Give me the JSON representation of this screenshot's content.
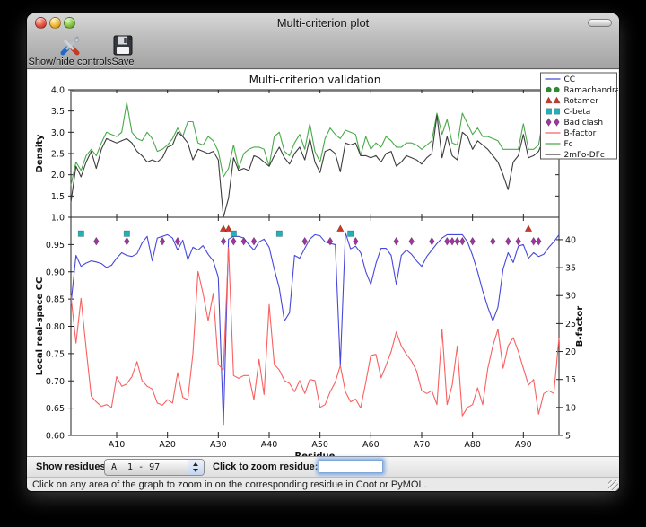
{
  "window": {
    "title": "Multi-criterion plot"
  },
  "toolbar": {
    "buttons": [
      {
        "label": "Show/hide controls",
        "icon": "tools-icon"
      },
      {
        "label": "Save",
        "icon": "save-icon"
      }
    ]
  },
  "controls": {
    "show_residues_label": "Show residues:",
    "chain_range_value": "A  1 - 97",
    "zoom_label": "Click to zoom residue:",
    "zoom_input_value": ""
  },
  "status_bar": {
    "text": "Click on any area of the graph to zoom in on the corresponding residue in Coot or PyMOL."
  },
  "chart_data": {
    "type": "line",
    "title": "Multi-criterion validation",
    "xlabel": "Residue",
    "x_range": [
      1,
      97
    ],
    "x_ticks": [
      {
        "residue": 10,
        "label": "A10"
      },
      {
        "residue": 20,
        "label": "A20"
      },
      {
        "residue": 30,
        "label": "A30"
      },
      {
        "residue": 40,
        "label": "A40"
      },
      {
        "residue": 50,
        "label": "A50"
      },
      {
        "residue": 60,
        "label": "A60"
      },
      {
        "residue": 70,
        "label": "A70"
      },
      {
        "residue": 80,
        "label": "A80"
      },
      {
        "residue": 90,
        "label": "A90"
      }
    ],
    "subplots": [
      {
        "ylabel": "Density",
        "ylim": [
          1.0,
          4.0
        ],
        "yticks": [
          1.0,
          1.5,
          2.0,
          2.5,
          3.0,
          3.5,
          4.0
        ],
        "series": [
          {
            "name": "Fc",
            "color": "#4aa94a",
            "values": [
              1.75,
              2.3,
              2.1,
              2.45,
              2.6,
              2.45,
              2.75,
              3.0,
              2.95,
              2.9,
              3.0,
              3.7,
              3.0,
              2.85,
              2.8,
              3.0,
              2.85,
              2.55,
              2.6,
              2.7,
              2.85,
              3.1,
              2.9,
              3.25,
              3.25,
              2.75,
              2.7,
              2.9,
              2.8,
              2.55,
              1.95,
              2.15,
              2.7,
              2.15,
              2.5,
              2.6,
              2.65,
              2.65,
              2.6,
              2.2,
              2.9,
              3.0,
              2.55,
              2.45,
              2.75,
              2.95,
              2.6,
              3.2,
              2.55,
              2.3,
              2.85,
              3.1,
              2.95,
              2.85,
              3.05,
              3.0,
              2.95,
              2.45,
              2.9,
              2.6,
              2.75,
              2.65,
              2.9,
              2.8,
              2.65,
              2.65,
              2.75,
              2.75,
              2.7,
              2.6,
              2.7,
              2.8,
              3.45,
              2.95,
              3.3,
              2.75,
              2.7,
              3.45,
              3.2,
              2.95,
              3.1,
              2.9,
              2.9,
              2.85,
              2.8,
              2.6,
              2.6,
              2.6,
              2.6,
              3.2,
              2.6,
              2.6,
              2.7,
              3.4,
              3.55,
              3.0,
              3.6
            ]
          },
          {
            "name": "2mFo-DFc",
            "color": "#3c3c3c",
            "values": [
              1.35,
              2.2,
              1.95,
              2.3,
              2.55,
              2.15,
              2.6,
              2.85,
              2.8,
              2.75,
              2.8,
              2.85,
              2.75,
              2.55,
              2.45,
              2.3,
              2.35,
              2.3,
              2.4,
              2.65,
              2.7,
              3.0,
              2.9,
              2.75,
              2.35,
              2.6,
              2.55,
              2.5,
              2.55,
              2.35,
              1.0,
              1.45,
              2.4,
              2.1,
              2.15,
              2.1,
              2.45,
              2.4,
              2.3,
              2.2,
              2.45,
              2.65,
              2.4,
              2.25,
              2.5,
              2.65,
              2.35,
              2.85,
              2.3,
              2.05,
              2.55,
              2.6,
              2.5,
              2.07,
              2.75,
              2.7,
              2.75,
              2.45,
              2.45,
              2.4,
              2.45,
              2.3,
              2.5,
              2.55,
              2.2,
              2.3,
              2.45,
              2.4,
              2.35,
              2.25,
              2.4,
              2.5,
              3.4,
              2.4,
              2.9,
              2.45,
              2.35,
              3.0,
              2.9,
              2.6,
              2.8,
              2.7,
              2.6,
              2.45,
              2.3,
              2.0,
              1.65,
              2.3,
              2.45,
              2.95,
              2.4,
              2.45,
              2.55,
              2.85,
              2.95,
              2.8,
              3.0
            ]
          }
        ]
      },
      {
        "ylabel": "Local real-space CC",
        "ylim": [
          0.6,
          1.0
        ],
        "yticks": [
          0.6,
          0.65,
          0.7,
          0.75,
          0.8,
          0.85,
          0.9,
          0.95
        ],
        "y2label": "B-factor",
        "y2lim": [
          5,
          44
        ],
        "y2ticks": [
          5,
          10,
          15,
          20,
          25,
          30,
          35,
          40
        ],
        "series": [
          {
            "name": "CC",
            "axis": "left",
            "color": "#4747dd",
            "values": [
              0.84,
              0.93,
              0.91,
              0.916,
              0.92,
              0.918,
              0.915,
              0.908,
              0.912,
              0.925,
              0.935,
              0.93,
              0.928,
              0.933,
              0.953,
              0.965,
              0.92,
              0.962,
              0.965,
              0.968,
              0.962,
              0.94,
              0.958,
              0.922,
              0.945,
              0.94,
              0.948,
              0.932,
              0.92,
              0.89,
              0.62,
              0.96,
              0.965,
              0.965,
              0.962,
              0.95,
              0.94,
              0.955,
              0.96,
              0.945,
              0.905,
              0.87,
              0.81,
              0.825,
              0.93,
              0.925,
              0.943,
              0.96,
              0.968,
              0.966,
              0.955,
              0.952,
              0.95,
              0.728,
              0.972,
              0.942,
              0.947,
              0.935,
              0.9,
              0.877,
              0.915,
              0.943,
              0.943,
              0.93,
              0.877,
              0.93,
              0.94,
              0.932,
              0.92,
              0.91,
              0.928,
              0.94,
              0.952,
              0.962,
              0.968,
              0.968,
              0.968,
              0.968,
              0.955,
              0.93,
              0.9,
              0.865,
              0.835,
              0.81,
              0.835,
              0.905,
              0.935,
              0.917,
              0.947,
              0.95,
              0.925,
              0.935,
              0.928,
              0.932,
              0.945,
              0.955,
              0.968
            ]
          },
          {
            "name": "B-factor",
            "axis": "right",
            "color": "#f96060",
            "values": [
              30.0,
              21.5,
              29.5,
              20.5,
              12.0,
              11.0,
              10.2,
              10.5,
              10.0,
              15.5,
              13.8,
              14.2,
              15.5,
              18.2,
              14.8,
              13.8,
              13.3,
              10.8,
              10.4,
              11.4,
              10.8,
              16.2,
              11.8,
              11.4,
              19.6,
              34.3,
              30.4,
              25.5,
              30.4,
              17.7,
              16.7,
              38.6,
              15.7,
              15.2,
              15.7,
              15.7,
              11.4,
              18.6,
              12.3,
              28.4,
              17.7,
              16.7,
              14.8,
              14.3,
              12.8,
              14.8,
              12.5,
              15.0,
              14.8,
              10.0,
              10.5,
              12.8,
              14.5,
              17.5,
              12.8,
              11.0,
              11.5,
              9.9,
              14.5,
              19.3,
              19.5,
              15.3,
              17.5,
              20.0,
              23.5,
              21.0,
              19.5,
              18.3,
              16.5,
              13.0,
              12.5,
              13.0,
              10.5,
              24.0,
              10.5,
              14.0,
              21.0,
              8.5,
              10.0,
              10.5,
              13.5,
              10.5,
              17.0,
              21.0,
              24.0,
              17.0,
              21.0,
              22.5,
              20.0,
              17.0,
              14.0,
              15.0,
              8.8,
              12.5,
              13.0,
              12.5,
              22.5
            ]
          }
        ],
        "markers": [
          {
            "name": "Rotamer",
            "shape": "triangle",
            "color": "#cc3726",
            "y": 0.979,
            "residues": [
              31,
              32,
              54,
              91
            ]
          },
          {
            "name": "C-beta",
            "shape": "square",
            "color": "#1fb3b9",
            "y": 0.97,
            "residues": [
              3,
              12,
              33,
              42,
              56
            ]
          },
          {
            "name": "Bad clash",
            "shape": "diamond",
            "color": "#a233a2",
            "y": 0.956,
            "residues": [
              6,
              12,
              19,
              22,
              31,
              33,
              35,
              37,
              47,
              52,
              57,
              65,
              68,
              72,
              75,
              76,
              77,
              78,
              80,
              84,
              87,
              89,
              92,
              93
            ]
          },
          {
            "name": "Ramachandran",
            "shape": "circle",
            "color": "#2e8b2e",
            "y": 0.988,
            "residues": []
          }
        ]
      }
    ],
    "legend": {
      "position": "upper-right",
      "entries": [
        {
          "label": "CC",
          "type": "line",
          "color": "#4747dd"
        },
        {
          "label": "Ramachandran",
          "type": "circle",
          "color": "#2e8b2e"
        },
        {
          "label": "Rotamer",
          "type": "triangle",
          "color": "#cc3726"
        },
        {
          "label": "C-beta",
          "type": "square",
          "color": "#1fb3b9"
        },
        {
          "label": "Bad clash",
          "type": "diamond",
          "color": "#a233a2"
        },
        {
          "label": "B-factor",
          "type": "line",
          "color": "#f96060"
        },
        {
          "label": "Fc",
          "type": "line",
          "color": "#4aa94a"
        },
        {
          "label": "2mFo-DFc",
          "type": "line",
          "color": "#3c3c3c"
        }
      ]
    }
  }
}
